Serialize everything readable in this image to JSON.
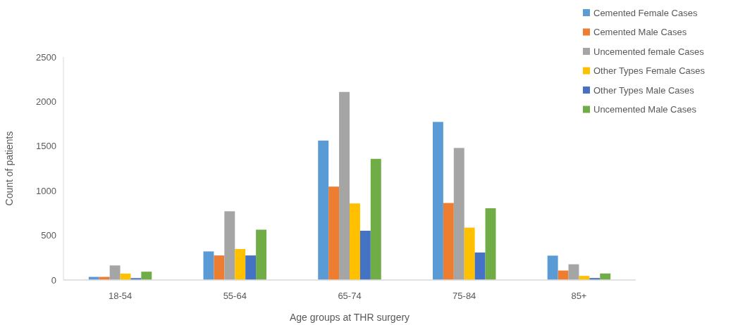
{
  "chart_data": {
    "type": "bar",
    "xlabel": "Age groups at THR surgery",
    "ylabel": "Count of patients",
    "categories": [
      "18-54",
      "55-64",
      "65-74",
      "75-84",
      "85+"
    ],
    "series": [
      {
        "name": "Cemented Female Cases",
        "color": "#5b9bd5",
        "values": [
          35,
          320,
          1563,
          1772,
          273
        ]
      },
      {
        "name": "Cemented Male Cases",
        "color": "#ed7d31",
        "values": [
          35,
          275,
          1047,
          863,
          106
        ]
      },
      {
        "name": "Uncemented female Cases",
        "color": "#a5a5a5",
        "values": [
          163,
          770,
          2108,
          1480,
          176
        ]
      },
      {
        "name": "Other Types Female Cases",
        "color": "#ffc000",
        "values": [
          72,
          347,
          858,
          587,
          46
        ]
      },
      {
        "name": "Other Types Male Cases",
        "color": "#4472c4",
        "values": [
          21,
          275,
          552,
          308,
          22
        ]
      },
      {
        "name": "Uncemented Male Cases",
        "color": "#70ad47",
        "values": [
          93,
          564,
          1358,
          804,
          73
        ]
      }
    ],
    "ylim": [
      0,
      2500
    ],
    "yticks": [
      0,
      500,
      1000,
      1500,
      2000,
      2500
    ],
    "grid": false,
    "legend": "top right"
  }
}
